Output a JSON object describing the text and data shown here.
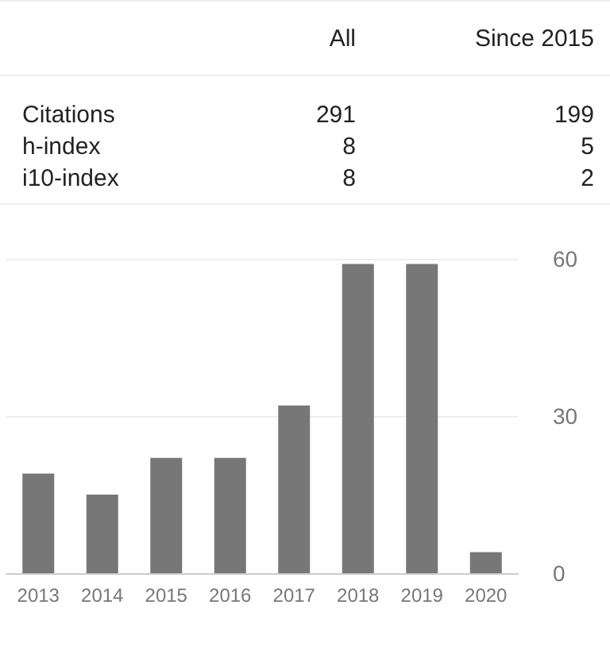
{
  "chart_data": [
    {
      "type": "other",
      "annotations": [
        "All",
        "Since 2015",
        "Citations",
        "291",
        "199",
        "h-index",
        "8",
        "5",
        "i10-index",
        "8",
        "2"
      ]
    },
    {
      "type": "bar",
      "categories": [
        "2013",
        "2014",
        "2015",
        "2016",
        "2017",
        "2018",
        "2019",
        "2020"
      ],
      "values": [
        19,
        15,
        22,
        22,
        32,
        59,
        59,
        4
      ],
      "color": "#777777",
      "ylim": [
        0,
        60
      ],
      "yticks": [
        0,
        30,
        60
      ],
      "grid": "y"
    }
  ]
}
